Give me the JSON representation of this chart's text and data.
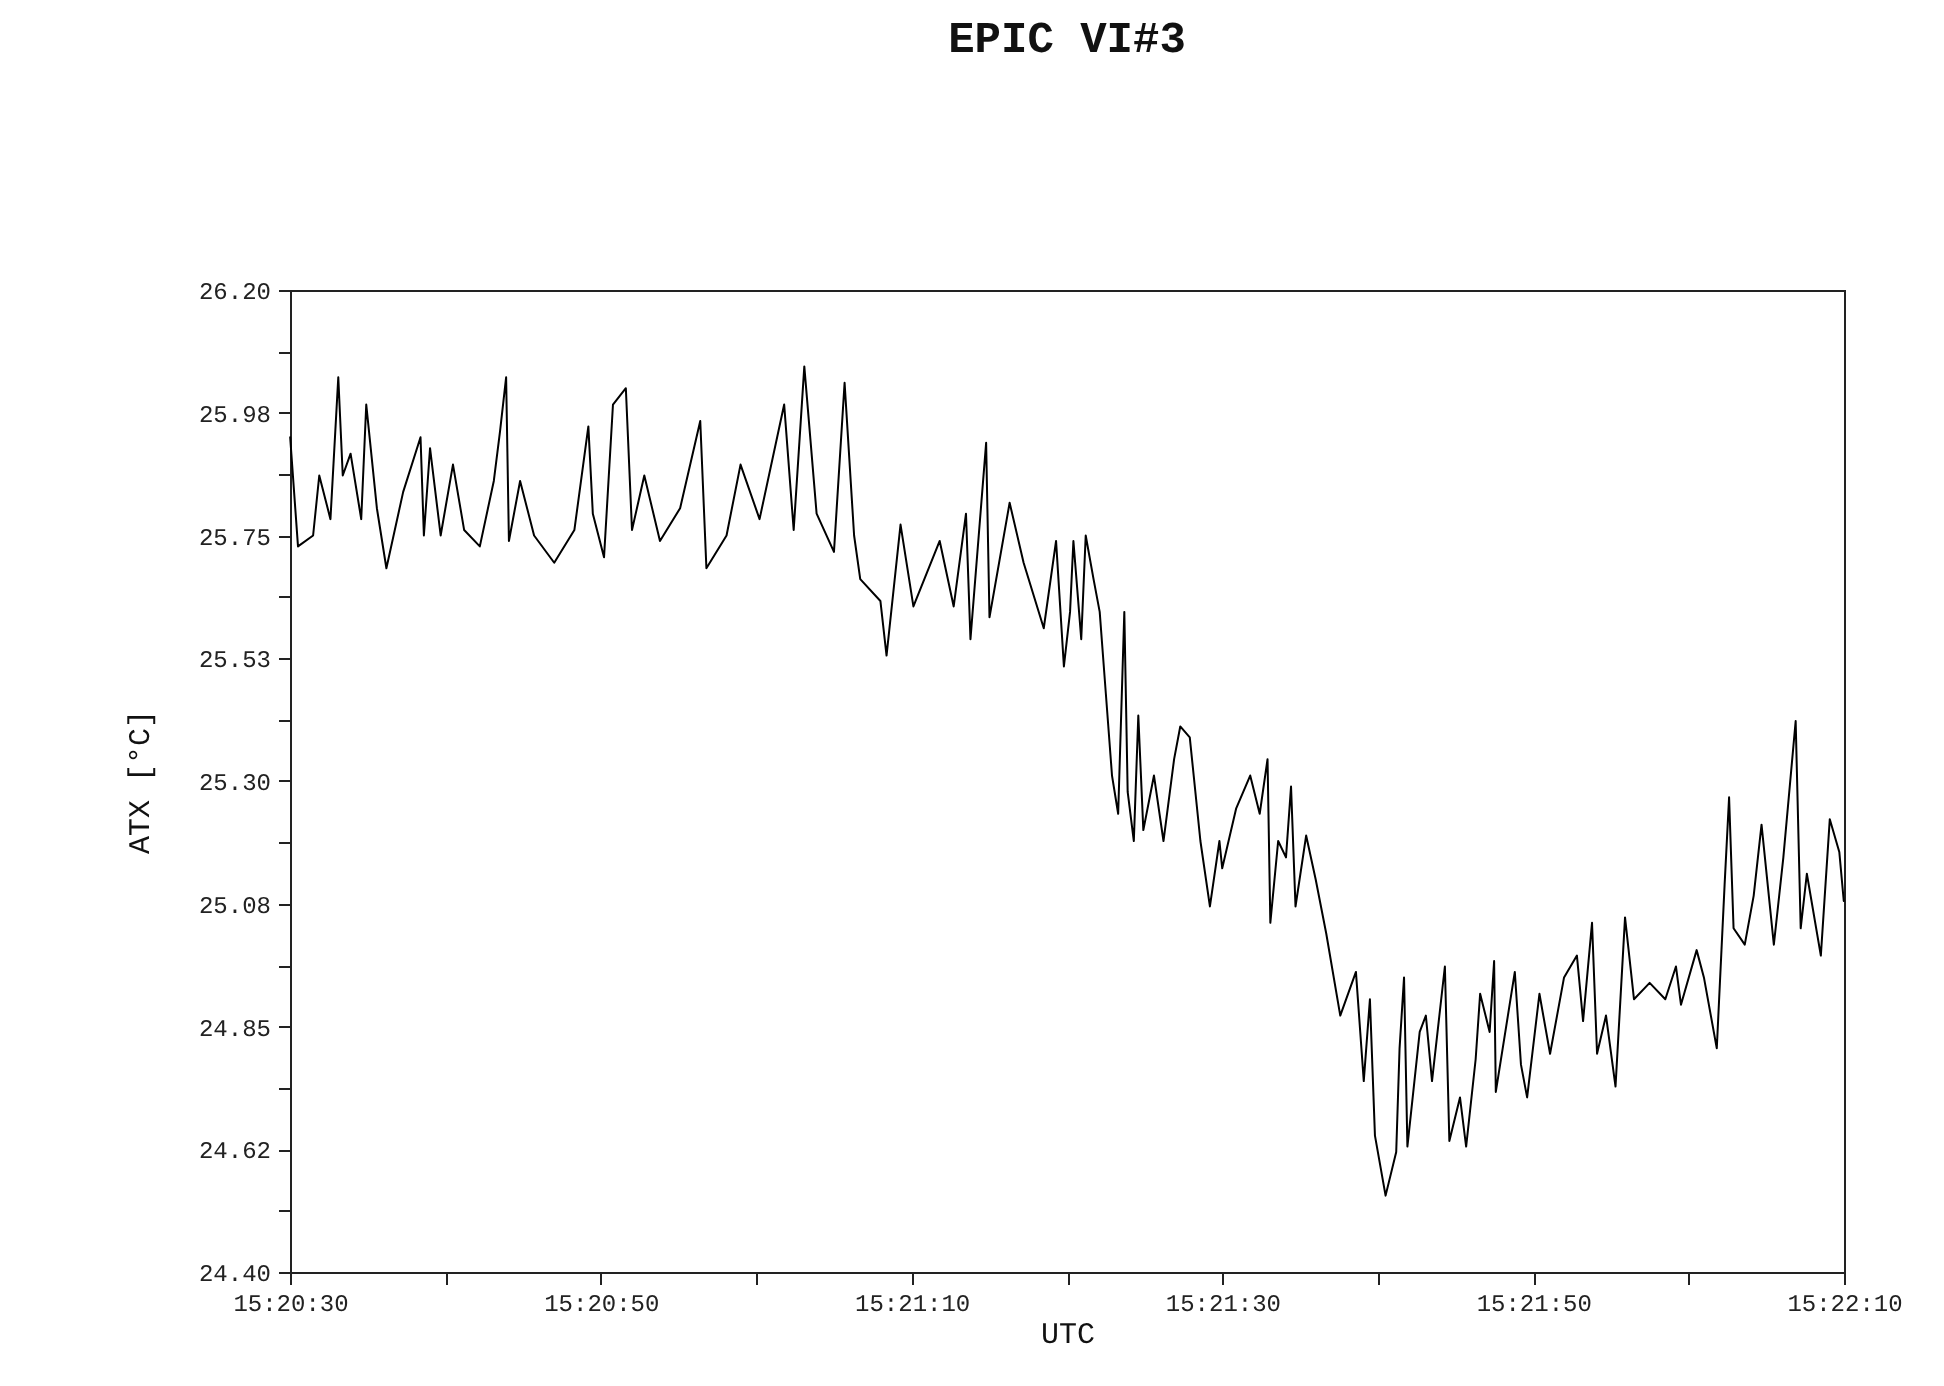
{
  "chart_data": {
    "type": "line",
    "title": "EPIC VI#3",
    "xlabel": "UTC",
    "ylabel": "ATX [°C]",
    "xlim": [
      15.341667,
      15.369444
    ],
    "xticks": [
      {
        "value": 15.341667,
        "label": "15:20:30"
      },
      {
        "value": 15.344444,
        "label": null
      },
      {
        "value": 15.347222,
        "label": "15:20:50"
      },
      {
        "value": 15.35,
        "label": null
      },
      {
        "value": 15.352778,
        "label": "15:21:10"
      },
      {
        "value": 15.355556,
        "label": null
      },
      {
        "value": 15.358333,
        "label": "15:21:30"
      },
      {
        "value": 15.361111,
        "label": null
      },
      {
        "value": 15.363889,
        "label": "15:21:50"
      },
      {
        "value": 15.366667,
        "label": null
      },
      {
        "value": 15.369444,
        "label": "15:22:10"
      }
    ],
    "ylim": [
      24.4,
      26.2
    ],
    "yticks": [
      {
        "value": 24.4,
        "label": "24.40"
      },
      {
        "value": 24.5125,
        "label": null
      },
      {
        "value": 24.625,
        "label": "24.62"
      },
      {
        "value": 24.7375,
        "label": null
      },
      {
        "value": 24.85,
        "label": "24.85"
      },
      {
        "value": 24.9625,
        "label": null
      },
      {
        "value": 25.075,
        "label": "25.08"
      },
      {
        "value": 25.1875,
        "label": null
      },
      {
        "value": 25.3,
        "label": "25.30"
      },
      {
        "value": 25.4125,
        "label": null
      },
      {
        "value": 25.525,
        "label": "25.53"
      },
      {
        "value": 25.6375,
        "label": null
      },
      {
        "value": 25.75,
        "label": "25.75"
      },
      {
        "value": 25.8625,
        "label": null
      },
      {
        "value": 25.975,
        "label": "25.98"
      },
      {
        "value": 26.0875,
        "label": null
      },
      {
        "value": 26.2,
        "label": "26.20"
      }
    ],
    "grid": false,
    "marker": "none",
    "line_style": "solid",
    "series": [
      {
        "color": "#000000",
        "x": [
          15.34167,
          15.34181,
          15.34208,
          15.34219,
          15.34239,
          15.34253,
          15.34261,
          15.34275,
          15.34294,
          15.34303,
          15.34322,
          15.34339,
          15.34369,
          15.344,
          15.34406,
          15.34417,
          15.34436,
          15.34458,
          15.34478,
          15.34506,
          15.34531,
          15.34542,
          15.34553,
          15.34558,
          15.34578,
          15.34603,
          15.34639,
          15.34675,
          15.347,
          15.34708,
          15.34728,
          15.34744,
          15.34767,
          15.34778,
          15.348,
          15.34828,
          15.34864,
          15.349,
          15.34911,
          15.34947,
          15.34972,
          15.35006,
          15.3505,
          15.35067,
          15.35086,
          15.35108,
          15.35139,
          15.35158,
          15.35175,
          15.35186,
          15.35222,
          15.35233,
          15.35258,
          15.35281,
          15.35328,
          15.35353,
          15.35375,
          15.35383,
          15.35411,
          15.35417,
          15.35453,
          15.35478,
          15.35514,
          15.35536,
          15.3555,
          15.35561,
          15.35567,
          15.35581,
          15.35589,
          15.35603,
          15.35614,
          15.35625,
          15.35636,
          15.35647,
          15.35658,
          15.35664,
          15.35675,
          15.35683,
          15.35692,
          15.35711,
          15.35728,
          15.35747,
          15.35758,
          15.35775,
          15.35794,
          15.35811,
          15.35828,
          15.35833,
          15.35858,
          15.35883,
          15.359,
          15.35914,
          15.35919,
          15.35933,
          15.35947,
          15.35956,
          15.35964,
          15.35983,
          15.36,
          15.36019,
          15.36044,
          15.36072,
          15.36086,
          15.36097,
          15.36106,
          15.36125,
          15.36144,
          15.3615,
          15.36158,
          15.36164,
          15.36186,
          15.36197,
          15.36208,
          15.36231,
          15.36239,
          15.36258,
          15.36269,
          15.36286,
          15.36294,
          15.36311,
          15.36319,
          15.36322,
          15.36356,
          15.36367,
          15.36378,
          15.364,
          15.36419,
          15.36444,
          15.36467,
          15.36478,
          15.36494,
          15.36503,
          15.36519,
          15.36536,
          15.36553,
          15.36569,
          15.36597,
          15.36625,
          15.36644,
          15.36653,
          15.36681,
          15.36694,
          15.36717,
          15.36731,
          15.36739,
          15.36747,
          15.36767,
          15.36783,
          15.36797,
          15.36819,
          15.36836,
          15.36858,
          15.36867,
          15.36878,
          15.36903,
          15.36919,
          15.36936,
          15.36944
        ],
        "values": [
          25.93,
          25.73,
          25.75,
          25.86,
          25.78,
          26.04,
          25.86,
          25.9,
          25.78,
          25.99,
          25.8,
          25.69,
          25.83,
          25.93,
          25.75,
          25.91,
          25.75,
          25.88,
          25.76,
          25.73,
          25.85,
          25.94,
          26.04,
          25.74,
          25.85,
          25.75,
          25.7,
          25.76,
          25.95,
          25.79,
          25.71,
          25.99,
          26.02,
          25.76,
          25.86,
          25.74,
          25.8,
          25.96,
          25.69,
          25.75,
          25.88,
          25.78,
          25.99,
          25.76,
          26.06,
          25.79,
          25.72,
          26.03,
          25.75,
          25.67,
          25.63,
          25.53,
          25.77,
          25.62,
          25.74,
          25.62,
          25.79,
          25.56,
          25.92,
          25.6,
          25.81,
          25.7,
          25.58,
          25.74,
          25.51,
          25.61,
          25.74,
          25.56,
          25.75,
          25.67,
          25.61,
          25.46,
          25.31,
          25.24,
          25.61,
          25.28,
          25.19,
          25.42,
          25.21,
          25.31,
          25.19,
          25.34,
          25.4,
          25.38,
          25.19,
          25.07,
          25.19,
          25.14,
          25.25,
          25.31,
          25.24,
          25.34,
          25.04,
          25.19,
          25.16,
          25.29,
          25.07,
          25.2,
          25.12,
          25.02,
          24.87,
          24.95,
          24.75,
          24.9,
          24.65,
          24.54,
          24.62,
          24.81,
          24.94,
          24.63,
          24.84,
          24.87,
          24.75,
          24.96,
          24.64,
          24.72,
          24.63,
          24.79,
          24.91,
          24.84,
          24.97,
          24.73,
          24.95,
          24.78,
          24.72,
          24.91,
          24.8,
          24.94,
          24.98,
          24.86,
          25.04,
          24.8,
          24.87,
          24.74,
          25.05,
          24.9,
          24.93,
          24.9,
          24.96,
          24.89,
          24.99,
          24.94,
          24.81,
          25.11,
          25.27,
          25.03,
          25,
          25.09,
          25.22,
          25,
          25.16,
          25.41,
          25.03,
          25.13,
          24.98,
          25.23,
          25.17,
          25.08
        ]
      }
    ]
  }
}
